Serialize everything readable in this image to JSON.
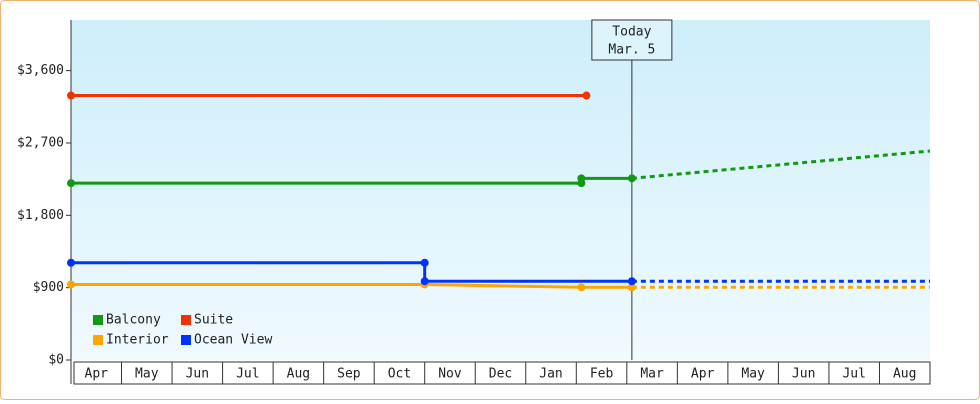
{
  "chart_data": {
    "type": "step-line",
    "categories": [
      "Apr",
      "May",
      "Jun",
      "Jul",
      "Aug",
      "Sep",
      "Oct",
      "Nov",
      "Dec",
      "Jan",
      "Feb",
      "Mar",
      "Apr",
      "May",
      "Jun",
      "Jul",
      "Aug"
    ],
    "xlim": [
      0,
      17
    ],
    "ylim": [
      0,
      4230
    ],
    "yticks": [
      {
        "value": 0,
        "label": "$0"
      },
      {
        "value": 900,
        "label": "$900"
      },
      {
        "value": 1800,
        "label": "$1,800"
      },
      {
        "value": 2700,
        "label": "$2,700"
      },
      {
        "value": 3600,
        "label": "$3,600"
      }
    ],
    "today": {
      "x": 11.1,
      "label": "Today",
      "date": "Mar. 5"
    },
    "series": [
      {
        "name": "Balcony",
        "color": "#119911",
        "x": [
          0,
          10.1,
          10.1,
          11.1
        ],
        "values": [
          2200,
          2200,
          2260,
          2260
        ],
        "forecast": {
          "x": [
            11.1,
            17
          ],
          "values": [
            2260,
            2600
          ]
        }
      },
      {
        "name": "Suite",
        "color": "#ee3300",
        "x": [
          0,
          10.2
        ],
        "values": [
          3290,
          3290
        ]
      },
      {
        "name": "Interior",
        "color": "#ffa500",
        "x": [
          0,
          7,
          10.1,
          11.1
        ],
        "values": [
          940,
          940,
          905,
          905
        ],
        "forecast": {
          "x": [
            11.1,
            17
          ],
          "values": [
            905,
            905
          ]
        }
      },
      {
        "name": "Ocean View",
        "color": "#0033ff",
        "x": [
          0,
          7,
          7,
          11.1
        ],
        "values": [
          1210,
          1210,
          980,
          980
        ],
        "forecast": {
          "x": [
            11.1,
            17
          ],
          "values": [
            980,
            980
          ]
        }
      }
    ]
  }
}
